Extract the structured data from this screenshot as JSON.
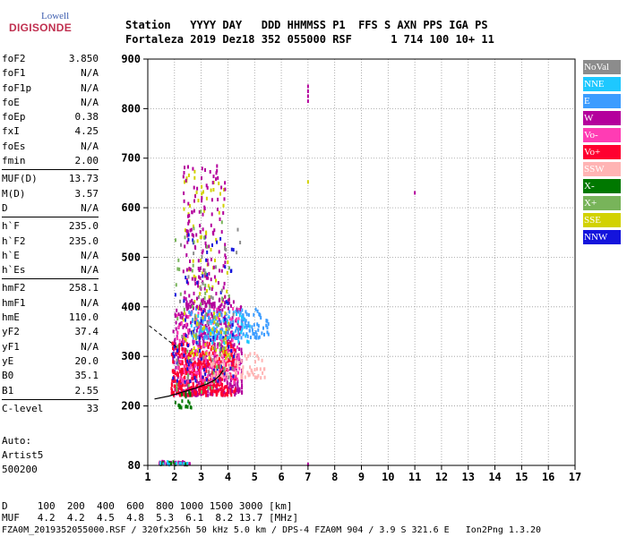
{
  "logo": {
    "line1": "Lowell",
    "line2": "DIGISONDE"
  },
  "header": {
    "row1": "Station   YYYY DAY   DDD HHMMSS P1  FFS S AXN PPS IGA PS",
    "row2": "Fortaleza 2019 Dez18 352 055000 RSF      1 714 100 10+ 11"
  },
  "parameters": [
    [
      {
        "label": "foF2",
        "value": "3.850"
      },
      {
        "label": "foF1",
        "value": "N/A"
      },
      {
        "label": "foF1p",
        "value": "N/A"
      },
      {
        "label": "foE",
        "value": "N/A"
      },
      {
        "label": "foEp",
        "value": "0.38"
      },
      {
        "label": "fxI",
        "value": "4.25"
      },
      {
        "label": "foEs",
        "value": "N/A"
      },
      {
        "label": "fmin",
        "value": "2.00"
      }
    ],
    [
      {
        "label": "MUF(D)",
        "value": "13.73"
      },
      {
        "label": "M(D)",
        "value": "3.57"
      },
      {
        "label": "D",
        "value": "N/A"
      }
    ],
    [
      {
        "label": "h`F",
        "value": "235.0"
      },
      {
        "label": "h`F2",
        "value": "235.0"
      },
      {
        "label": "h`E",
        "value": "N/A"
      },
      {
        "label": "h`Es",
        "value": "N/A"
      }
    ],
    [
      {
        "label": "hmF2",
        "value": "258.1"
      },
      {
        "label": "hmF1",
        "value": "N/A"
      },
      {
        "label": "hmE",
        "value": "110.0"
      },
      {
        "label": "yF2",
        "value": "37.4"
      },
      {
        "label": "yF1",
        "value": "N/A"
      },
      {
        "label": "yE",
        "value": "20.0"
      },
      {
        "label": "B0",
        "value": "35.1"
      },
      {
        "label": "B1",
        "value": "2.55"
      }
    ],
    [
      {
        "label": "C-level",
        "value": "33"
      }
    ]
  ],
  "auto": {
    "l1": "Auto:",
    "l2": "Artist5",
    "l3": "500200"
  },
  "legend": [
    {
      "label": "NoVal",
      "color": "#8c8c8c"
    },
    {
      "label": "NNE",
      "color": "#1ec8ff"
    },
    {
      "label": "E",
      "color": "#3c9cff"
    },
    {
      "label": "W",
      "color": "#b4009c"
    },
    {
      "label": "Vo-",
      "color": "#ff3cb4"
    },
    {
      "label": "Vo+",
      "color": "#ff0030"
    },
    {
      "label": "SSW",
      "color": "#ffb4b4"
    },
    {
      "label": "X-",
      "color": "#007800"
    },
    {
      "label": "X+",
      "color": "#78b45a"
    },
    {
      "label": "SSE",
      "color": "#d2d200"
    },
    {
      "label": "NNW",
      "color": "#1414dc"
    }
  ],
  "bottom": {
    "muf_d": "D     100  200  400  600  800 1000 1500 3000 [km]",
    "muf_v": "MUF   4.2  4.2  4.5  4.8  5.3  6.1  8.2 13.7 [MHz]",
    "footer": "FZA0M_2019352055000.RSF / 320fx256h 50 kHz 5.0 km / DPS-4 FZA0M 904 / 3.9 S 321.6 E   Ion2Png 1.3.20"
  },
  "chart_data": {
    "type": "scatter",
    "xlim": [
      1,
      17
    ],
    "ylim": [
      80,
      900
    ],
    "xticks": [
      1,
      2,
      3,
      4,
      5,
      6,
      7,
      8,
      9,
      10,
      11,
      12,
      13,
      14,
      15,
      16,
      17
    ],
    "yticks": [
      80,
      200,
      300,
      400,
      500,
      600,
      700,
      800,
      900
    ],
    "grid": true,
    "legend_position": "right",
    "profile": {
      "x": [
        1.25,
        1.8,
        2.3,
        2.8,
        3.2,
        3.5,
        3.7,
        3.82
      ],
      "y": [
        214,
        220,
        228,
        236,
        244,
        252,
        262,
        272
      ]
    },
    "clusters": [
      {
        "name": "W",
        "x": [
          1.9,
          4.5
        ],
        "y": [
          225,
          420
        ],
        "n": 520
      },
      {
        "name": "Vo+",
        "x": [
          1.85,
          4.3
        ],
        "y": [
          225,
          330
        ],
        "n": 420
      },
      {
        "name": "Vo-",
        "x": [
          2.0,
          4.4
        ],
        "y": [
          250,
          400
        ],
        "n": 160
      },
      {
        "name": "E",
        "x": [
          2.5,
          5.5
        ],
        "y": [
          340,
          400
        ],
        "n": 150
      },
      {
        "name": "NNE",
        "x": [
          2.6,
          4.8
        ],
        "y": [
          330,
          390
        ],
        "n": 50
      },
      {
        "name": "SSW",
        "x": [
          3.3,
          5.4
        ],
        "y": [
          260,
          310
        ],
        "n": 90
      },
      {
        "name": "SSE",
        "x": [
          2.3,
          4.0
        ],
        "y": [
          300,
          680
        ],
        "n": 110
      },
      {
        "name": "W",
        "x": [
          2.3,
          3.9
        ],
        "y": [
          400,
          690
        ],
        "n": 160
      },
      {
        "name": "NNW",
        "x": [
          1.9,
          4.3
        ],
        "y": [
          250,
          550
        ],
        "n": 80
      },
      {
        "name": "X+",
        "x": [
          1.95,
          4.2
        ],
        "y": [
          230,
          600
        ],
        "n": 60
      },
      {
        "name": "X-",
        "x": [
          1.9,
          2.6
        ],
        "y": [
          200,
          235
        ],
        "n": 20
      },
      {
        "name": "NoVal",
        "x": [
          2.0,
          4.5
        ],
        "y": [
          250,
          560
        ],
        "n": 40
      },
      {
        "name": "W",
        "x": [
          1.4,
          2.6
        ],
        "y": [
          85,
          92
        ],
        "n": 25
      },
      {
        "name": "X-",
        "x": [
          1.4,
          2.6
        ],
        "y": [
          85,
          92
        ],
        "n": 15
      },
      {
        "name": "NNE",
        "x": [
          1.4,
          2.6
        ],
        "y": [
          85,
          92
        ],
        "n": 10
      }
    ],
    "isolated_points": [
      {
        "x": 7.0,
        "y": 845,
        "series": "W"
      },
      {
        "x": 7.0,
        "y": 835,
        "series": "W"
      },
      {
        "x": 7.0,
        "y": 825,
        "series": "W"
      },
      {
        "x": 7.0,
        "y": 815,
        "series": "W"
      },
      {
        "x": 7.0,
        "y": 652,
        "series": "SSE"
      },
      {
        "x": 11.0,
        "y": 630,
        "series": "W"
      },
      {
        "x": 7.0,
        "y": 82,
        "series": "W"
      }
    ]
  }
}
